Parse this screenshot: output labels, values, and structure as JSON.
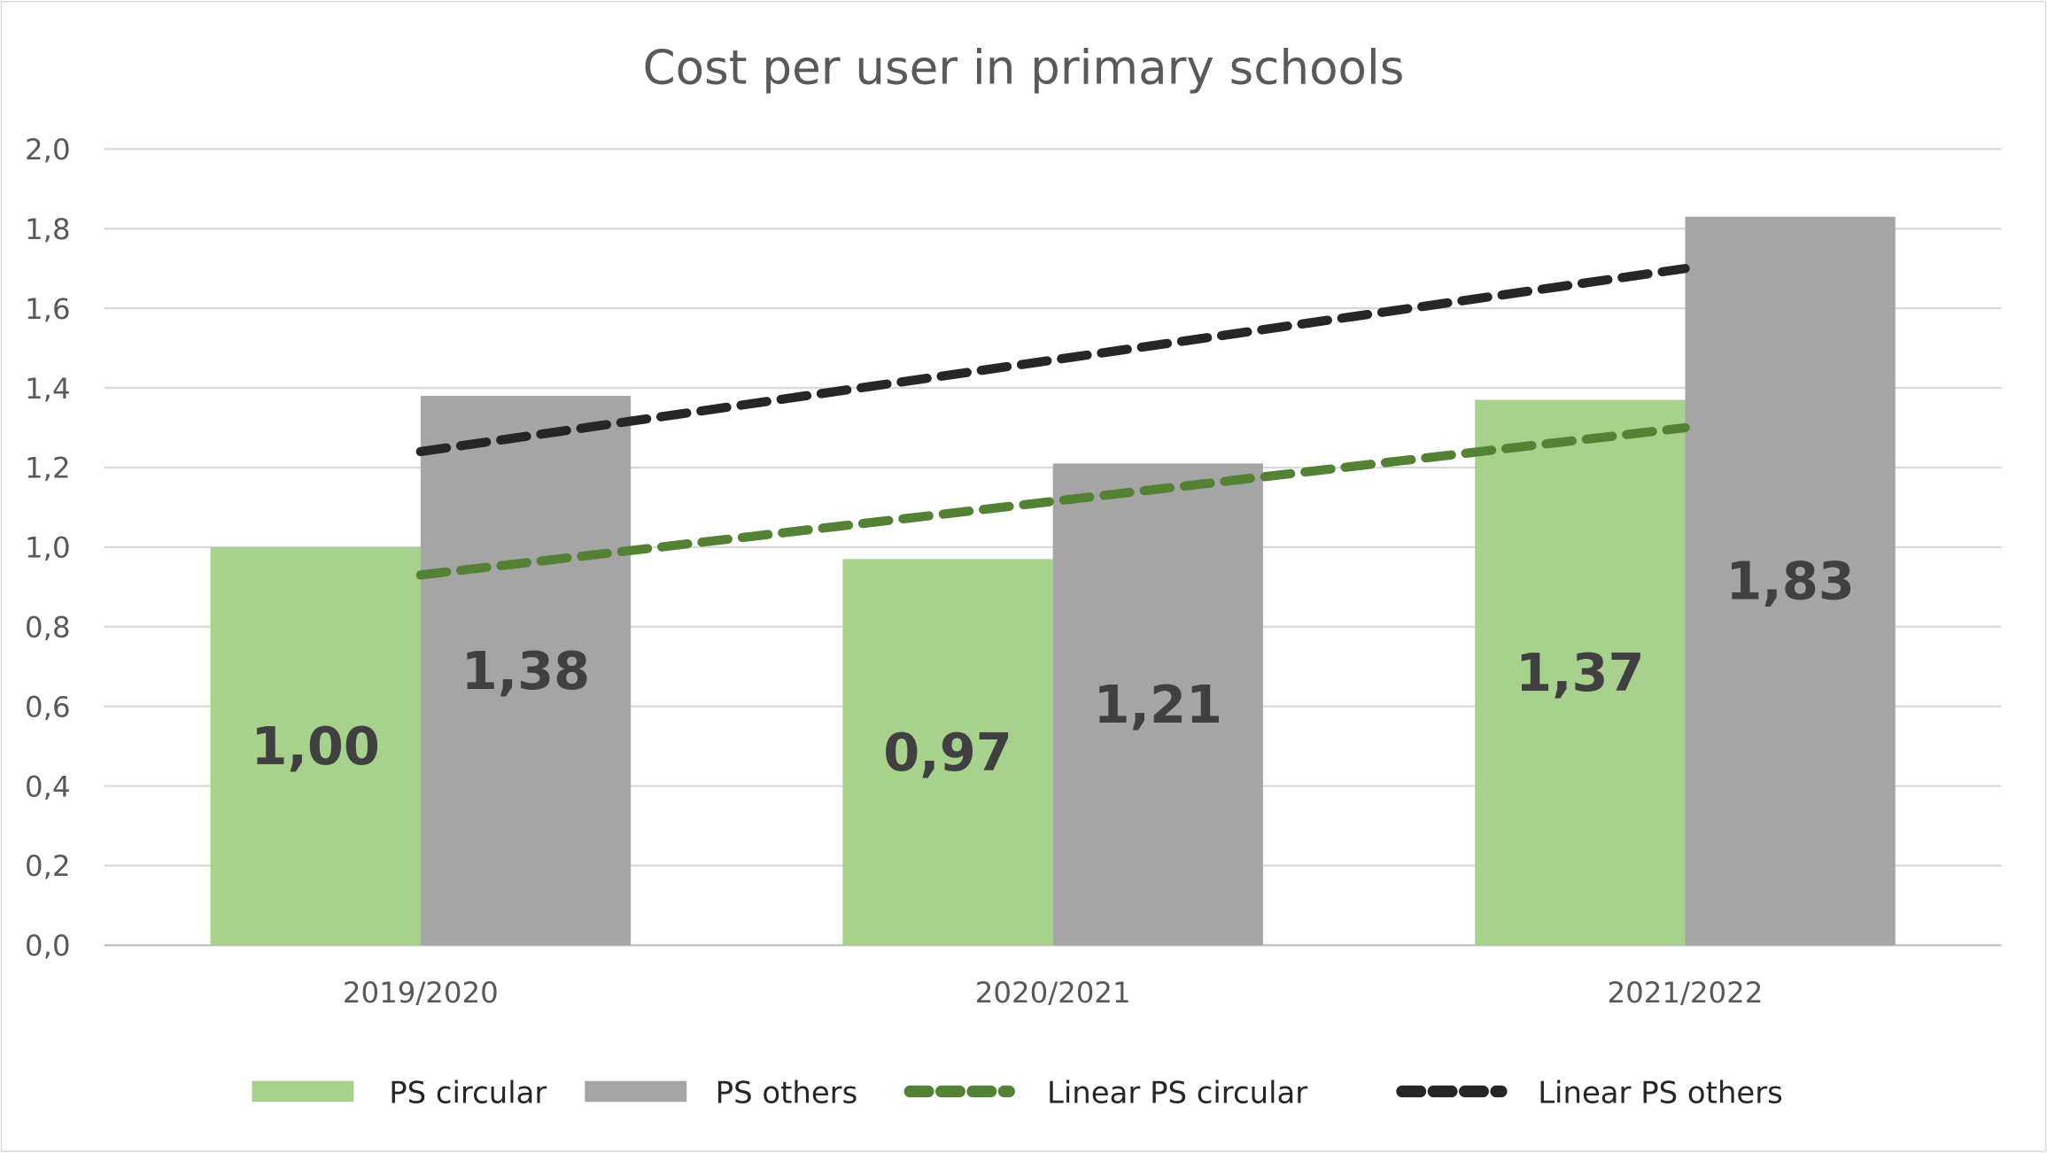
{
  "chart_data": {
    "type": "bar",
    "title": "Cost per user in primary schools",
    "xlabel": "",
    "ylabel": "",
    "ylim": [
      0,
      2.0
    ],
    "yticks": [
      "0,0",
      "0,2",
      "0,4",
      "0,6",
      "0,8",
      "1,0",
      "1,2",
      "1,4",
      "1,6",
      "1,8",
      "2,0"
    ],
    "grid": true,
    "legend_position": "bottom",
    "categories": [
      "2019/2020",
      "2020/2021",
      "2021/2022"
    ],
    "series": [
      {
        "name": "PS circular",
        "values": [
          1.0,
          0.97,
          1.37
        ],
        "labels": [
          "1,00",
          "0,97",
          "1,37"
        ],
        "color": "#a9d18e"
      },
      {
        "name": "PS others",
        "values": [
          1.38,
          1.21,
          1.83
        ],
        "labels": [
          "1,38",
          "1,21",
          "1,83"
        ],
        "color": "#a5a5a5"
      }
    ],
    "trendlines": [
      {
        "name": "Linear PS circular",
        "type": "linear",
        "start": 0.93,
        "end": 1.3,
        "color": "#548235"
      },
      {
        "name": "Linear PS others",
        "type": "linear",
        "start": 1.24,
        "end": 1.7,
        "color": "#262626"
      }
    ]
  }
}
